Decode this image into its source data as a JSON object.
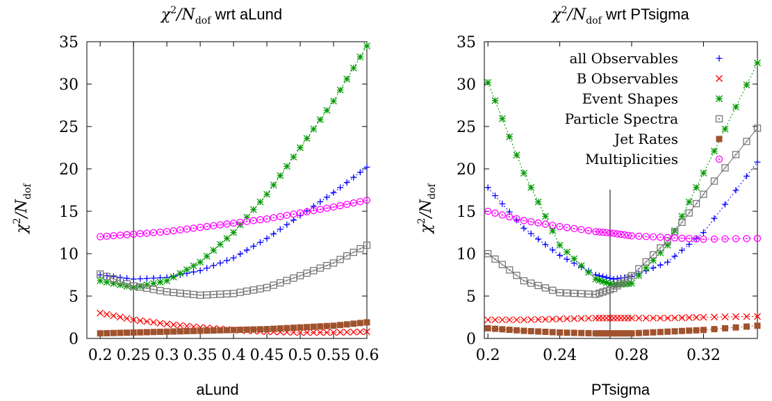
{
  "figure": {
    "ylabel_main": "χ",
    "ylabel_sup": "2",
    "ylabel_slash": "/N",
    "ylabel_sub": "dof"
  },
  "legend": [
    {
      "label": "all Observables",
      "color": "#0000ff",
      "marker": "plus"
    },
    {
      "label": "B Observables",
      "color": "#ff0000",
      "marker": "cross"
    },
    {
      "label": "Event Shapes",
      "color": "#009900",
      "marker": "star"
    },
    {
      "label": "Particle Spectra",
      "color": "#777777",
      "marker": "open-square"
    },
    {
      "label": "Jet Rates",
      "color": "#a0522d",
      "marker": "filled-square"
    },
    {
      "label": "Multiplicities",
      "color": "#ff00ff",
      "marker": "open-circle"
    }
  ],
  "chart_data": [
    {
      "type": "scatter",
      "title_main": "χ",
      "title_sup": "2",
      "title_slash": "/N",
      "title_sub": "dof",
      "title_suffix": " wrt aLund",
      "xlabel": "aLund",
      "ylabel": "χ²/Ndof",
      "xlim": [
        0.18,
        0.6
      ],
      "ylim": [
        0,
        35
      ],
      "xticks": [
        "0.2",
        "0.25",
        "0.3",
        "0.35",
        "0.4",
        "0.45",
        "0.5",
        "0.55",
        "0.6"
      ],
      "xtick_values": [
        0.2,
        0.25,
        0.3,
        0.35,
        0.4,
        0.45,
        0.5,
        0.55,
        0.6
      ],
      "yticks": [
        "0",
        "5",
        "10",
        "15",
        "20",
        "25",
        "30",
        "35"
      ],
      "ytick_values": [
        0,
        5,
        10,
        15,
        20,
        25,
        30,
        35
      ],
      "vline": 0.25,
      "grid": false,
      "series": [
        {
          "name": "all Observables",
          "x": [
            0.2,
            0.25,
            0.3,
            0.35,
            0.4,
            0.45,
            0.5,
            0.55,
            0.6
          ],
          "y": [
            7.5,
            7.0,
            7.2,
            8.0,
            9.5,
            11.8,
            14.5,
            17.2,
            20.2
          ]
        },
        {
          "name": "B Observables",
          "x": [
            0.2,
            0.25,
            0.3,
            0.35,
            0.4,
            0.45,
            0.5,
            0.55,
            0.6
          ],
          "y": [
            3.0,
            2.2,
            1.7,
            1.3,
            1.0,
            0.8,
            0.7,
            0.7,
            0.8
          ]
        },
        {
          "name": "Event Shapes",
          "x": [
            0.2,
            0.25,
            0.3,
            0.35,
            0.4,
            0.45,
            0.5,
            0.55,
            0.6
          ],
          "y": [
            6.8,
            6.0,
            6.8,
            9.0,
            12.5,
            17.0,
            22.5,
            28.0,
            34.5
          ]
        },
        {
          "name": "Particle Spectra",
          "x": [
            0.2,
            0.25,
            0.3,
            0.35,
            0.4,
            0.45,
            0.5,
            0.55,
            0.6
          ],
          "y": [
            7.6,
            6.2,
            5.5,
            5.1,
            5.3,
            6.0,
            7.4,
            8.9,
            11.0
          ]
        },
        {
          "name": "Jet Rates",
          "x": [
            0.2,
            0.25,
            0.3,
            0.35,
            0.4,
            0.45,
            0.5,
            0.55,
            0.6
          ],
          "y": [
            0.6,
            0.7,
            0.8,
            0.9,
            1.0,
            1.1,
            1.3,
            1.5,
            1.9
          ]
        },
        {
          "name": "Multiplicities",
          "x": [
            0.2,
            0.25,
            0.3,
            0.35,
            0.4,
            0.45,
            0.5,
            0.55,
            0.6
          ],
          "y": [
            12.0,
            12.3,
            12.6,
            13.1,
            13.6,
            14.1,
            14.8,
            15.5,
            16.3
          ]
        }
      ]
    },
    {
      "type": "scatter",
      "title_main": "χ",
      "title_sup": "2",
      "title_slash": "/N",
      "title_sub": "dof",
      "title_suffix": " wrt PTsigma",
      "xlabel": "PTsigma",
      "ylabel": "χ²/Ndof",
      "xlim": [
        0.198,
        0.35
      ],
      "ylim": [
        0,
        35
      ],
      "xticks": [
        "0.2",
        "0.24",
        "0.28",
        "0.32"
      ],
      "xtick_values": [
        0.2,
        0.24,
        0.28,
        0.32
      ],
      "yticks": [
        "0",
        "5",
        "10",
        "15",
        "20",
        "25",
        "30",
        "35"
      ],
      "ytick_values": [
        0,
        5,
        10,
        15,
        20,
        25,
        30,
        35
      ],
      "vline": 0.268,
      "grid": false,
      "legend_position": "top-right",
      "series": [
        {
          "name": "all Observables",
          "x": [
            0.2,
            0.22,
            0.24,
            0.26,
            0.27,
            0.28,
            0.3,
            0.32,
            0.35
          ],
          "y": [
            17.8,
            13.0,
            9.8,
            7.5,
            7.0,
            7.3,
            9.0,
            12.5,
            20.8
          ]
        },
        {
          "name": "B Observables",
          "x": [
            0.2,
            0.22,
            0.24,
            0.26,
            0.27,
            0.28,
            0.3,
            0.32,
            0.35
          ],
          "y": [
            2.2,
            2.2,
            2.3,
            2.4,
            2.4,
            2.4,
            2.4,
            2.5,
            2.6
          ]
        },
        {
          "name": "Event Shapes",
          "x": [
            0.2,
            0.22,
            0.24,
            0.26,
            0.27,
            0.28,
            0.3,
            0.32,
            0.35
          ],
          "y": [
            30.2,
            19.5,
            11.0,
            7.0,
            6.3,
            6.5,
            11.0,
            19.5,
            32.5
          ]
        },
        {
          "name": "Particle Spectra",
          "x": [
            0.2,
            0.22,
            0.24,
            0.26,
            0.27,
            0.28,
            0.3,
            0.32,
            0.35
          ],
          "y": [
            10.0,
            6.8,
            5.4,
            5.2,
            5.9,
            7.4,
            11.5,
            17.0,
            24.8
          ]
        },
        {
          "name": "Jet Rates",
          "x": [
            0.2,
            0.22,
            0.24,
            0.26,
            0.27,
            0.28,
            0.3,
            0.32,
            0.35
          ],
          "y": [
            1.2,
            0.9,
            0.7,
            0.6,
            0.6,
            0.6,
            0.8,
            1.0,
            1.5
          ]
        },
        {
          "name": "Multiplicities",
          "x": [
            0.2,
            0.22,
            0.24,
            0.26,
            0.27,
            0.28,
            0.3,
            0.32,
            0.35
          ],
          "y": [
            15.0,
            13.9,
            13.2,
            12.6,
            12.4,
            12.1,
            11.9,
            11.7,
            11.8
          ]
        }
      ]
    }
  ]
}
